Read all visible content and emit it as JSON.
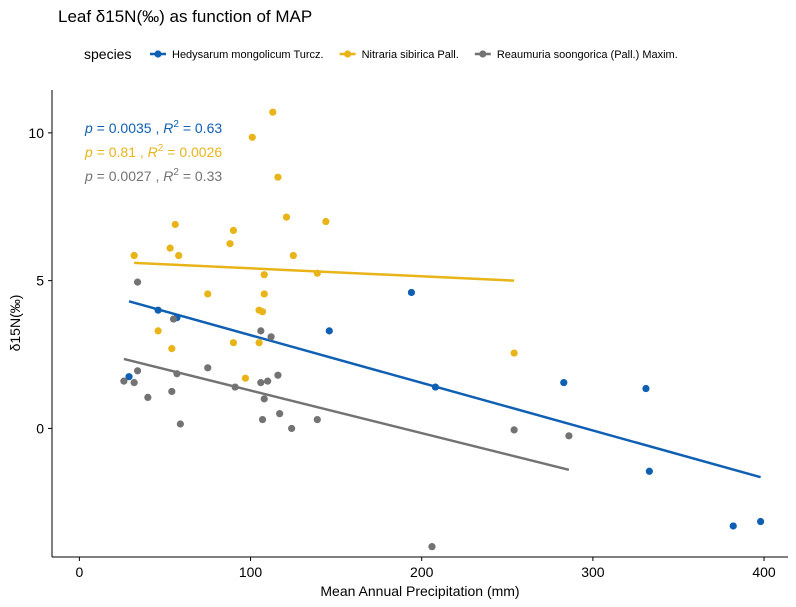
{
  "chart_data": {
    "type": "scatter",
    "title": "Leaf δ15N(‰) as function of MAP",
    "xlabel": "Mean Annual Precipitation (mm)",
    "ylabel": "δ15N(‰)",
    "legend_title": "species",
    "legend_position": "top",
    "xlim": [
      -16,
      414
    ],
    "ylim": [
      -4.35,
      11.45
    ],
    "x_ticks": [
      0,
      100,
      200,
      300,
      400
    ],
    "y_ticks": [
      0,
      5,
      10
    ],
    "grid": false,
    "series": [
      {
        "name": "Hedysarum mongolicum Turcz.",
        "color": "#0f5fb3",
        "points": [
          [
            29,
            1.75
          ],
          [
            46,
            4.0
          ],
          [
            57,
            3.75
          ],
          [
            146,
            3.3
          ],
          [
            194,
            4.6
          ],
          [
            208,
            1.4
          ],
          [
            283,
            1.55
          ],
          [
            331,
            1.35
          ],
          [
            333,
            -1.45
          ],
          [
            382,
            -3.3
          ],
          [
            398,
            -3.15
          ]
        ],
        "fit": {
          "x": [
            29,
            398
          ],
          "y": [
            4.3,
            -1.65
          ]
        },
        "stats": {
          "p": "0.0035",
          "r2": "0.63"
        }
      },
      {
        "name": "Nitraria sibirica Pall.",
        "color": "#e8b418",
        "points": [
          [
            32,
            5.85
          ],
          [
            46,
            3.3
          ],
          [
            53,
            6.1
          ],
          [
            54,
            2.7
          ],
          [
            56,
            6.9
          ],
          [
            58,
            5.85
          ],
          [
            75,
            4.55
          ],
          [
            88,
            6.25
          ],
          [
            90,
            2.9
          ],
          [
            90,
            6.7
          ],
          [
            97,
            1.7
          ],
          [
            101,
            9.85
          ],
          [
            105,
            4.0
          ],
          [
            105,
            2.9
          ],
          [
            107,
            3.95
          ],
          [
            108,
            5.2
          ],
          [
            108,
            4.55
          ],
          [
            113,
            10.7
          ],
          [
            116,
            8.5
          ],
          [
            121,
            7.15
          ],
          [
            125,
            5.85
          ],
          [
            139,
            5.25
          ],
          [
            144,
            7.0
          ],
          [
            254,
            2.55
          ]
        ],
        "fit": {
          "x": [
            32,
            254
          ],
          "y": [
            5.6,
            5.0
          ]
        },
        "stats": {
          "p": "0.81",
          "r2": "0.0026"
        }
      },
      {
        "name": "Reaumuria soongorica (Pall.) Maxim.",
        "color": "#737373",
        "points": [
          [
            26,
            1.6
          ],
          [
            32,
            1.55
          ],
          [
            34,
            1.95
          ],
          [
            34,
            4.95
          ],
          [
            40,
            1.05
          ],
          [
            54,
            1.25
          ],
          [
            55,
            3.7
          ],
          [
            57,
            1.85
          ],
          [
            59,
            0.15
          ],
          [
            75,
            2.05
          ],
          [
            91,
            1.4
          ],
          [
            106,
            3.3
          ],
          [
            106,
            1.55
          ],
          [
            107,
            0.3
          ],
          [
            108,
            1.0
          ],
          [
            110,
            1.6
          ],
          [
            112,
            3.1
          ],
          [
            116,
            1.8
          ],
          [
            117,
            0.5
          ],
          [
            124,
            0.0
          ],
          [
            139,
            0.3
          ],
          [
            206,
            -4.0
          ],
          [
            254,
            -0.05
          ],
          [
            286,
            -0.25
          ]
        ],
        "fit": {
          "x": [
            26,
            286
          ],
          "y": [
            2.35,
            -1.4
          ]
        },
        "stats": {
          "p": "0.0027",
          "r2": "0.33"
        }
      }
    ]
  }
}
